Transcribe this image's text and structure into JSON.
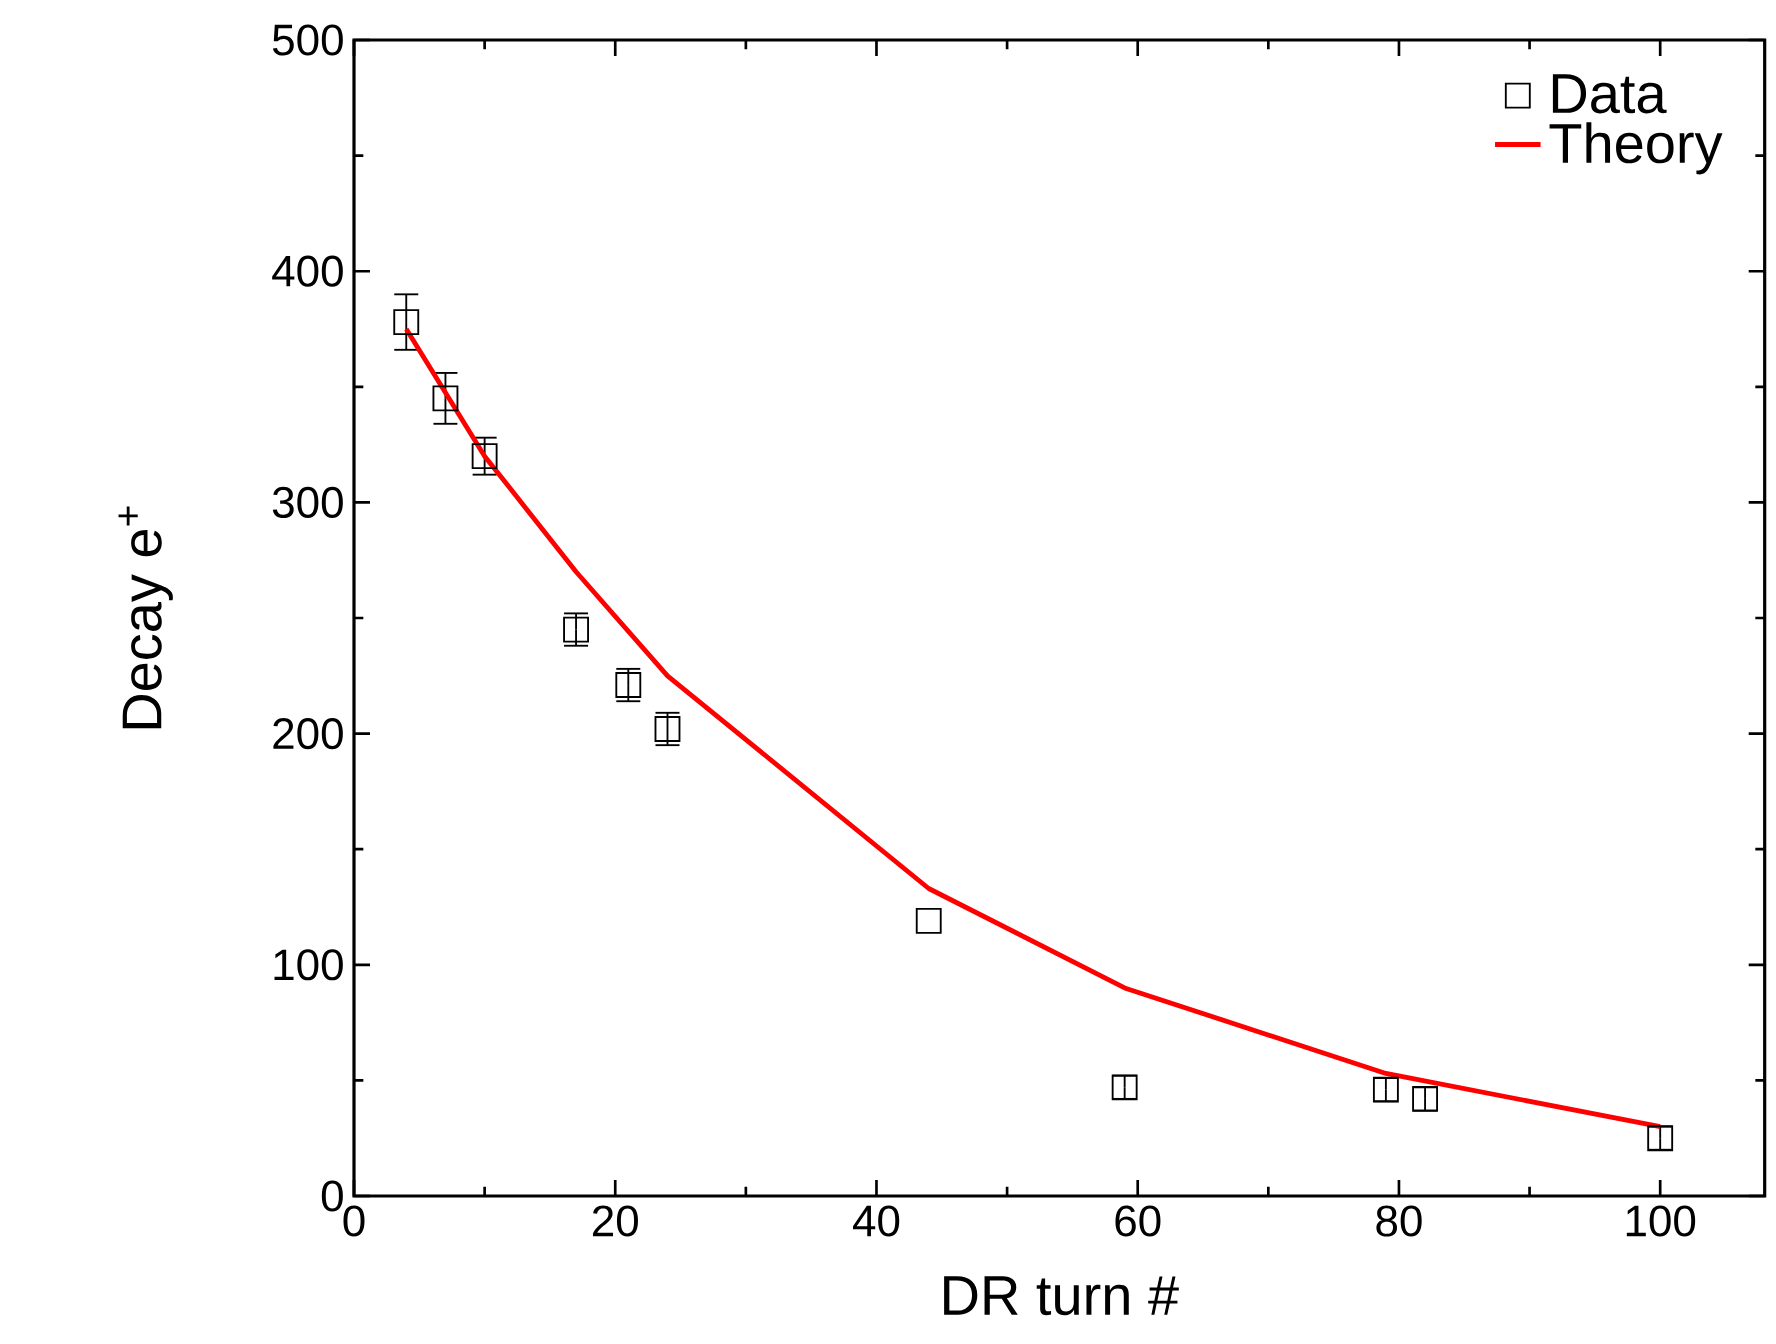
{
  "chart_data": {
    "type": "scatter",
    "xlabel": "DR turn #",
    "ylabel": "Decay e$^{+}$",
    "xlim": [
      0,
      108
    ],
    "ylim": [
      0,
      500
    ],
    "xticks": [
      0,
      20,
      40,
      60,
      80,
      100
    ],
    "yticks": [
      0,
      100,
      200,
      300,
      400,
      500
    ],
    "grid": false,
    "legend": "top right",
    "series": [
      {
        "name": "Data",
        "marker": "square",
        "color": "#000000",
        "x": [
          4,
          7,
          10,
          17,
          21,
          24,
          44,
          59,
          79,
          82,
          100
        ],
        "values": [
          378,
          345,
          320,
          245,
          221,
          202,
          119,
          47,
          46,
          42,
          25
        ],
        "errors": [
          12,
          11,
          8,
          7,
          7,
          7,
          null,
          5,
          5,
          5,
          5
        ]
      },
      {
        "name": "Theory",
        "type": "line",
        "marker": "none",
        "line_style": "solid",
        "color": "#ff0000",
        "x": [
          4,
          10,
          17,
          24,
          44,
          59,
          79,
          100
        ],
        "values": [
          375,
          320,
          270,
          225,
          133,
          90,
          53,
          30
        ]
      }
    ]
  }
}
